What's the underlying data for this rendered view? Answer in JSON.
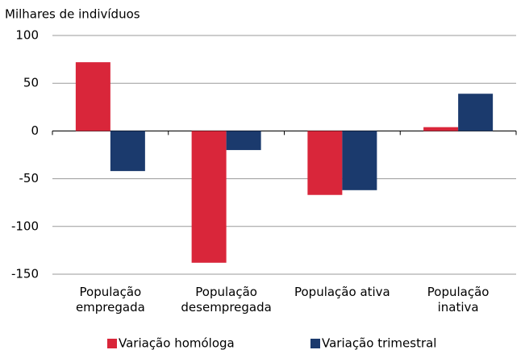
{
  "chart_data": {
    "type": "bar",
    "y_label": "Milhares de indivíduos",
    "categories": [
      "População empregada",
      "População desempregada",
      "População ativa",
      "População inativa"
    ],
    "series": [
      {
        "name": "Variação homóloga",
        "color": "#d9263a",
        "values": [
          72,
          -138,
          -67,
          4
        ]
      },
      {
        "name": "Variação trimestral",
        "color": "#1b3a6d",
        "values": [
          -42,
          -20,
          -62,
          39
        ]
      }
    ],
    "ylim": [
      -150,
      100
    ],
    "yticks": [
      -150,
      -100,
      -50,
      0,
      50,
      100
    ],
    "grid": true
  }
}
